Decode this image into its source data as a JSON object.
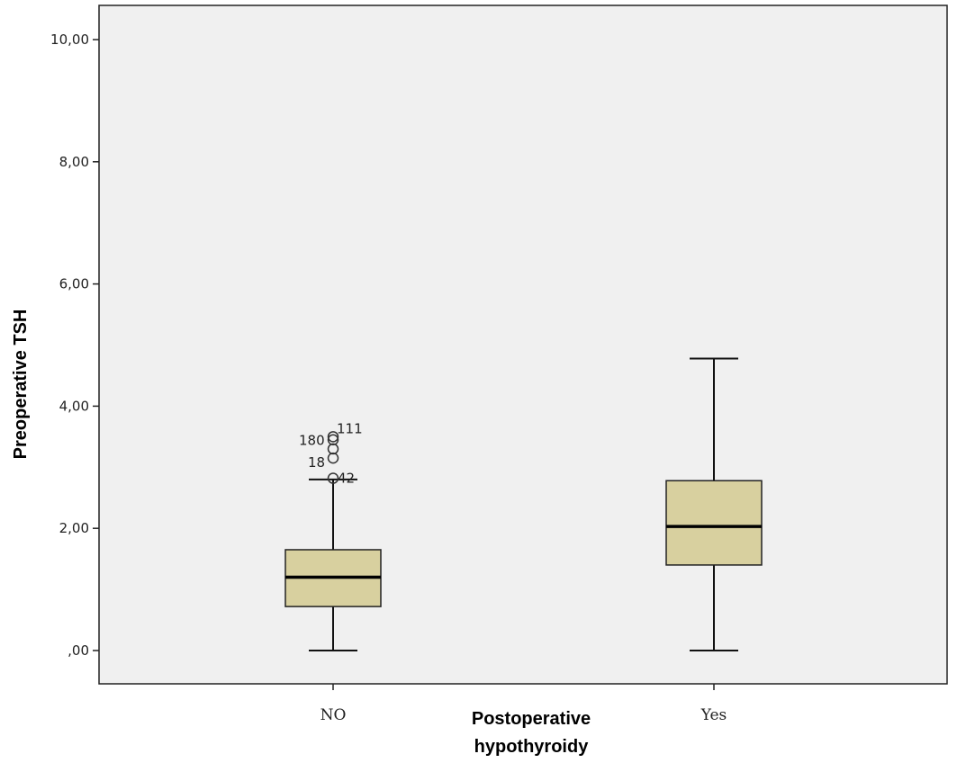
{
  "chart_data": {
    "type": "boxplot",
    "title": "",
    "xlabel_lines": [
      "Postoperative",
      "hypothyroidy"
    ],
    "ylabel": "Preoperative TSH",
    "ylim": [
      0,
      10
    ],
    "yticks": [
      {
        "value": 0,
        "label": ",00"
      },
      {
        "value": 2,
        "label": "2,00"
      },
      {
        "value": 4,
        "label": "4,00"
      },
      {
        "value": 6,
        "label": "6,00"
      },
      {
        "value": 8,
        "label": "8,00"
      },
      {
        "value": 10,
        "label": "10,00"
      }
    ],
    "grid": false,
    "background_color": "#f0f0f0",
    "box_color": "#d8d09f",
    "categories": [
      {
        "label": "NO",
        "min": 0.0,
        "q1": 0.72,
        "median": 1.2,
        "q3": 1.65,
        "max": 2.8,
        "outliers": [
          {
            "value": 3.45,
            "label": "180"
          },
          {
            "value": 3.5,
            "label": "111"
          },
          {
            "value": 3.3,
            "label": ""
          },
          {
            "value": 3.15,
            "label": "18"
          },
          {
            "value": 2.82,
            "label": "42"
          }
        ]
      },
      {
        "label": "Yes",
        "min": 0.0,
        "q1": 1.4,
        "median": 2.03,
        "q3": 2.78,
        "max": 4.78,
        "outliers": []
      }
    ]
  }
}
